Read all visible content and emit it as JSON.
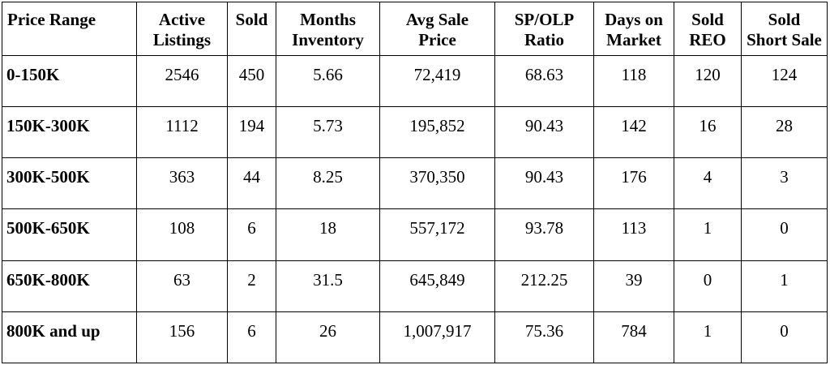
{
  "table": {
    "headers": [
      [
        "Price Range"
      ],
      [
        "Active",
        "Listings"
      ],
      [
        "Sold"
      ],
      [
        "Months",
        "Inventory"
      ],
      [
        "Avg Sale",
        "Price"
      ],
      [
        "SP/OLP",
        "Ratio"
      ],
      [
        "Days on",
        "Market"
      ],
      [
        "Sold",
        "REO"
      ],
      [
        "Sold",
        "Short Sale"
      ]
    ],
    "rows": [
      [
        "0-150K",
        "2546",
        "450",
        "5.66",
        "72,419",
        "68.63",
        "118",
        "120",
        "124"
      ],
      [
        "150K-300K",
        "1112",
        "194",
        "5.73",
        "195,852",
        "90.43",
        "142",
        "16",
        "28"
      ],
      [
        "300K-500K",
        "363",
        "44",
        "8.25",
        "370,350",
        "90.43",
        "176",
        "4",
        "3"
      ],
      [
        "500K-650K",
        "108",
        "6",
        "18",
        "557,172",
        "93.78",
        "113",
        "1",
        "0"
      ],
      [
        "650K-800K",
        "63",
        "2",
        "31.5",
        "645,849",
        "212.25",
        "39",
        "0",
        "1"
      ],
      [
        "800K and up",
        "156",
        "6",
        "26",
        "1,007,917",
        "75.36",
        "784",
        "1",
        "0"
      ]
    ]
  }
}
